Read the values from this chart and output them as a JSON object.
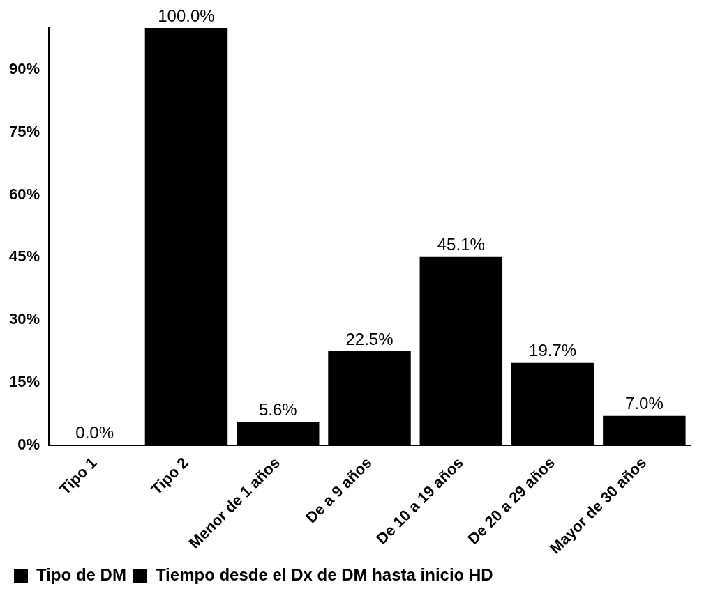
{
  "chart_data": {
    "type": "bar",
    "categories": [
      "Tipo 1",
      "Tipo 2",
      "Menor de 1 años",
      "De a 9 años",
      "De 10 a 19 años",
      "De 20 a 29 años",
      "Mayor de 30 años"
    ],
    "series": [
      {
        "name": "Tipo de DM",
        "color": "#000000",
        "values": [
          0.0,
          100.0,
          null,
          null,
          null,
          null,
          null
        ],
        "value_labels": [
          "0.0%",
          "100.0%",
          null,
          null,
          null,
          null,
          null
        ]
      },
      {
        "name": "Tiempo desde el Dx de DM hasta inicio HD",
        "color": "#000000",
        "values": [
          null,
          null,
          5.6,
          22.5,
          45.1,
          19.7,
          7.0
        ],
        "value_labels": [
          null,
          null,
          "5.6%",
          "22.5%",
          "45.1%",
          "19.7%",
          "7.0%"
        ]
      }
    ],
    "ylim": [
      0,
      100
    ],
    "yticks": [
      {
        "value": 0,
        "label": "0%"
      },
      {
        "value": 15,
        "label": "15%"
      },
      {
        "value": 30,
        "label": "30%"
      },
      {
        "value": 45,
        "label": "45%"
      },
      {
        "value": 60,
        "label": "60%"
      },
      {
        "value": 75,
        "label": "75%"
      },
      {
        "value": 90,
        "label": "90%"
      }
    ],
    "grid": false,
    "legend": "bottom"
  }
}
